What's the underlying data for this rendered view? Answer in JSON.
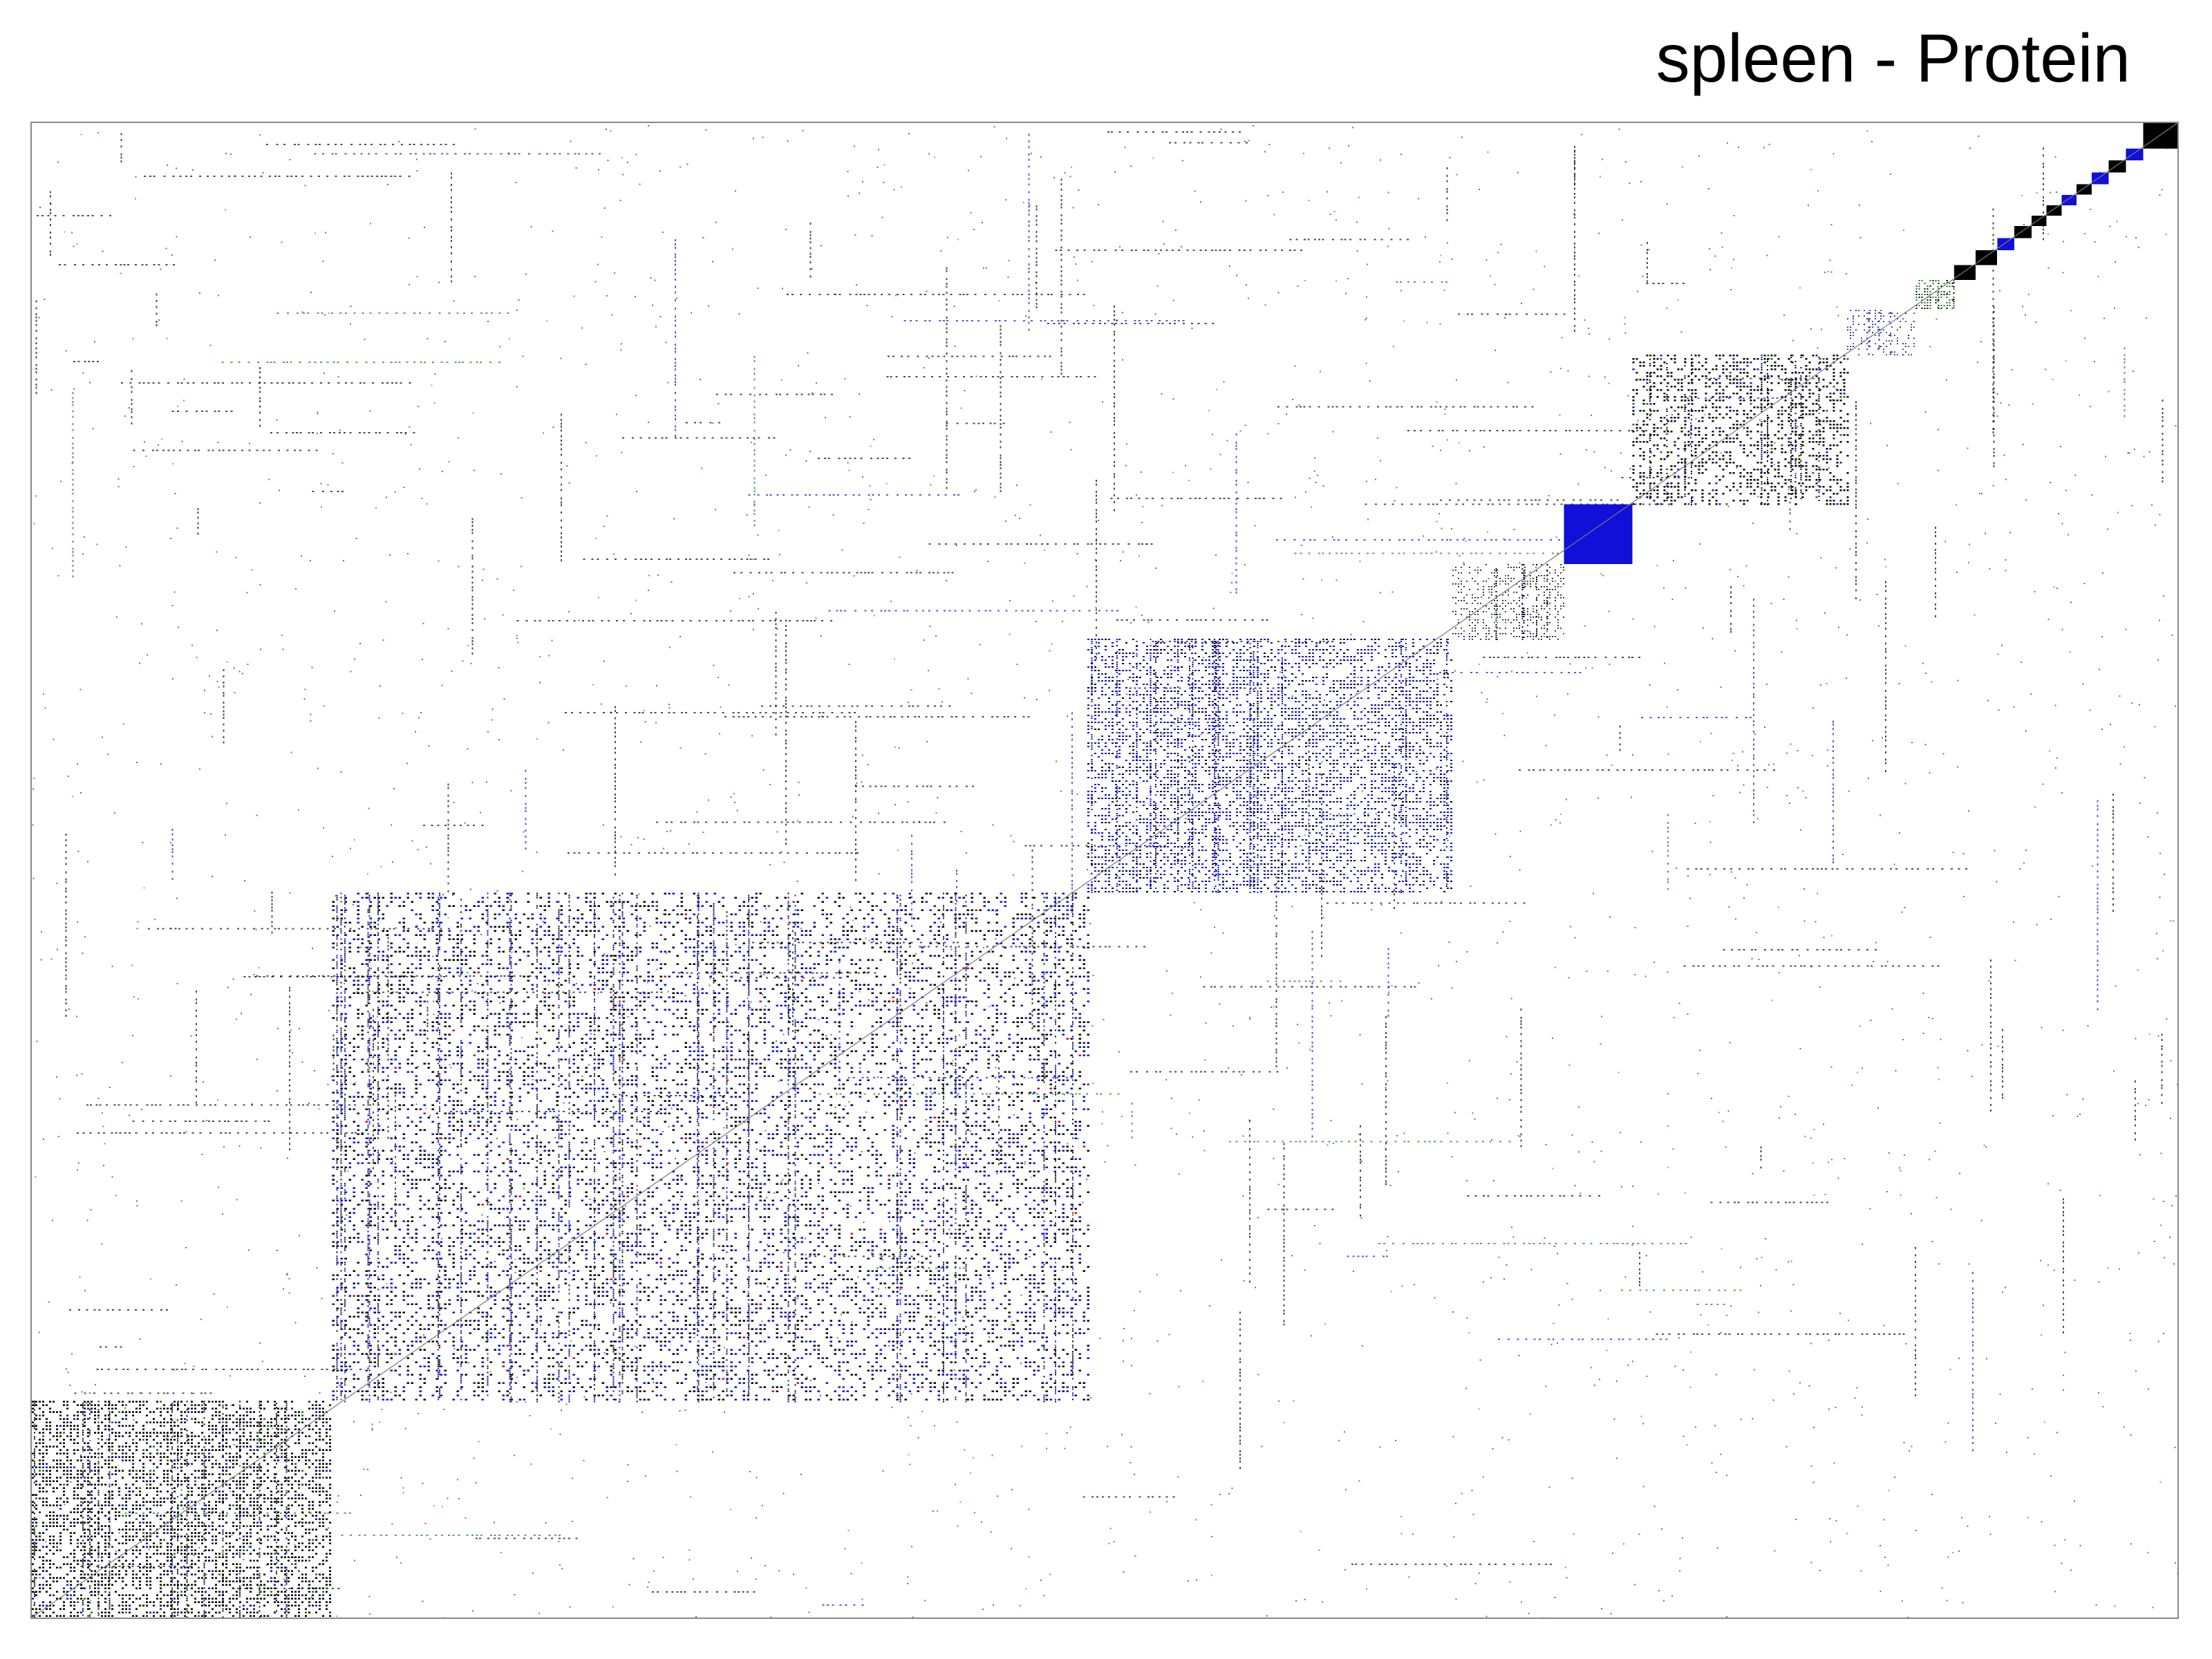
{
  "chart_data": {
    "type": "heatmap",
    "title": "spleen - Protein",
    "xlabel": "",
    "ylabel": "",
    "grid": false,
    "axis_ticks": false,
    "legend": "none",
    "colors": {
      "dense": "#000000",
      "blue": "#1010d8",
      "green": "#1a7a1a",
      "red": "#c81414",
      "frame": "#888888"
    },
    "diagonal": "bottom-left to top-right",
    "blocks": [
      {
        "x": [
          0.0,
          0.14
        ],
        "y": [
          0.0,
          0.145
        ],
        "fill": 0.85,
        "color": "dense"
      },
      {
        "x": [
          0.14,
          0.492
        ],
        "y": [
          0.145,
          0.485
        ],
        "fill": 0.55,
        "color": "blue-dense"
      },
      {
        "x": [
          0.492,
          0.662
        ],
        "y": [
          0.485,
          0.655
        ],
        "fill": 0.8,
        "color": "blue"
      },
      {
        "x": [
          0.662,
          0.714
        ],
        "y": [
          0.655,
          0.705
        ],
        "fill": 0.55,
        "color": "dense"
      },
      {
        "x": [
          0.714,
          0.746
        ],
        "y": [
          0.705,
          0.745
        ],
        "fill": 1.0,
        "color": "blue"
      },
      {
        "x": [
          0.746,
          0.846
        ],
        "y": [
          0.745,
          0.845
        ],
        "fill": 0.65,
        "color": "dense"
      },
      {
        "x": [
          0.846,
          0.878
        ],
        "y": [
          0.845,
          0.875
        ],
        "fill": 0.5,
        "color": "blue"
      },
      {
        "x": [
          0.878,
          0.896
        ],
        "y": [
          0.875,
          0.895
        ],
        "fill": 0.95,
        "color": "green"
      },
      {
        "x": [
          0.896,
          0.906
        ],
        "y": [
          0.895,
          0.905
        ],
        "fill": 1.0,
        "color": "dense"
      },
      {
        "x": [
          0.906,
          0.916
        ],
        "y": [
          0.905,
          0.915
        ],
        "fill": 1.0,
        "color": "dense"
      },
      {
        "x": [
          0.916,
          0.924
        ],
        "y": [
          0.915,
          0.923
        ],
        "fill": 1.0,
        "color": "blue"
      },
      {
        "x": [
          0.924,
          0.932
        ],
        "y": [
          0.923,
          0.931
        ],
        "fill": 1.0,
        "color": "dense"
      },
      {
        "x": [
          0.932,
          0.939
        ],
        "y": [
          0.931,
          0.938
        ],
        "fill": 1.0,
        "color": "dense"
      },
      {
        "x": [
          0.939,
          0.946
        ],
        "y": [
          0.938,
          0.945
        ],
        "fill": 1.0,
        "color": "dense"
      },
      {
        "x": [
          0.946,
          0.953
        ],
        "y": [
          0.945,
          0.952
        ],
        "fill": 1.0,
        "color": "blue"
      },
      {
        "x": [
          0.953,
          0.96
        ],
        "y": [
          0.952,
          0.959
        ],
        "fill": 1.0,
        "color": "dense"
      },
      {
        "x": [
          0.96,
          0.968
        ],
        "y": [
          0.959,
          0.967
        ],
        "fill": 1.0,
        "color": "blue"
      },
      {
        "x": [
          0.968,
          0.976
        ],
        "y": [
          0.967,
          0.975
        ],
        "fill": 1.0,
        "color": "dense"
      },
      {
        "x": [
          0.976,
          0.984
        ],
        "y": [
          0.975,
          0.983
        ],
        "fill": 1.0,
        "color": "blue"
      },
      {
        "x": [
          0.984,
          1.0
        ],
        "y": [
          0.983,
          1.0
        ],
        "fill": 1.0,
        "color": "dense"
      }
    ]
  }
}
